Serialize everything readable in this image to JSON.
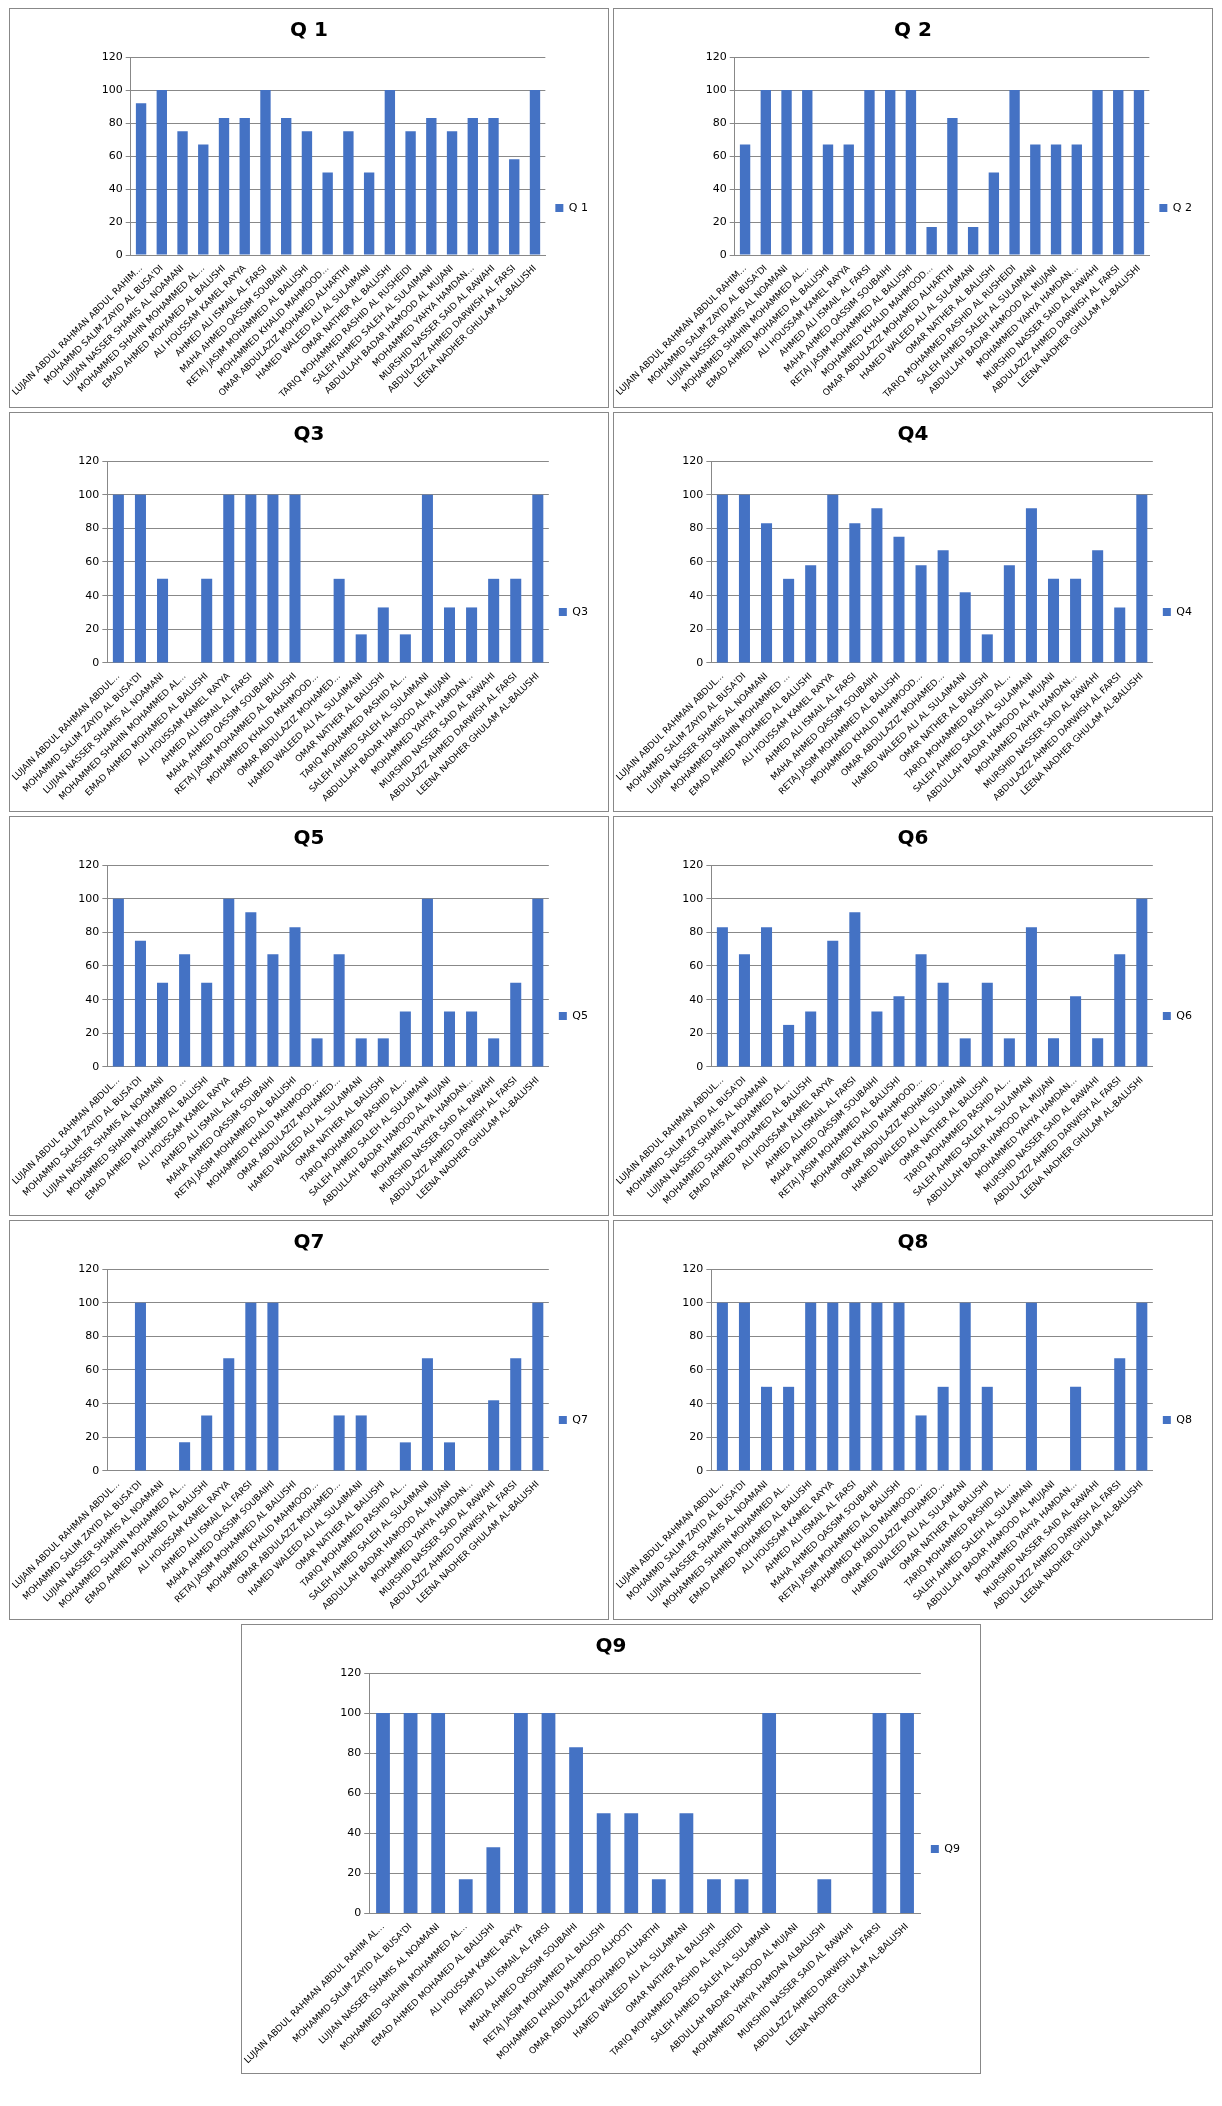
{
  "chart_data": [
    {
      "type": "bar",
      "title": "Q 1",
      "categories": [
        "LUJAIN ABDUL RAHMAN ABDUL RAHIM...",
        "MOHAMMD SALIM ZAYID AL BUSA'DI",
        "LUJIAN NASSER SHAMIS AL NOAMANI",
        "MOHAMMED SHAHIN MOHAMMED AL...",
        "EMAD AHMED MOHAMED AL BALUSHI",
        "ALI HOUSSAM KAMEL RAYYA",
        "AHMED ALI ISMAIL AL FARSI",
        "MAHA AHMED QASSIM SOUBAIHI",
        "RETAJ JASIM MOHAMMED AL BALUSHI",
        "MOHAMMED KHALID MAHMOOD...",
        "OMAR ABDULAZIZ MOHAMED ALHARTHI",
        "HAMED WALEED ALI AL SULAIMANI",
        "OMAR NATHER AL BALUSHI",
        "TARIQ MOHAMMED RASHID AL RUSHEIDI",
        "SALEH AHMED SALEH AL SULAIMANI",
        "ABDULLAH BADAR HAMOOD AL MUJANI",
        "MOHAMMED YAHYA HAMDAN...",
        "MURSHID NASSER SAID AL RAWAHI",
        "ABDULAZIZ AHMED DARWISH AL FARSI",
        "LEENA NADHER GHULAM AL-BALUSHI"
      ],
      "series": [
        {
          "name": "Q 1",
          "color": "#4472c4",
          "values": [
            92,
            100,
            75,
            67,
            83,
            83,
            100,
            83,
            75,
            50,
            75,
            50,
            100,
            75,
            83,
            75,
            83,
            83,
            58,
            100
          ]
        }
      ],
      "ylim": [
        0,
        120
      ],
      "yticks": [
        0,
        20,
        40,
        60,
        80,
        100,
        120
      ],
      "grid": "y",
      "legend": "right"
    },
    {
      "type": "bar",
      "title": "Q 2",
      "categories": [
        "LUJAIN ABDUL RAHMAN ABDUL RAHIM...",
        "MOHAMMD SALIM ZAYID AL BUSA'DI",
        "LUJIAN NASSER SHAMIS AL NOAMANI",
        "MOHAMMED SHAHIN MOHAMMED AL...",
        "EMAD AHMED MOHAMED AL BALUSHI",
        "ALI HOUSSAM KAMEL RAYYA",
        "AHMED ALI ISMAIL AL FARSI",
        "MAHA AHMED QASSIM SOUBAIHI",
        "RETAJ JASIM MOHAMMED AL BALUSHI",
        "MOHAMMED KHALID MAHMOOD...",
        "OMAR ABDULAZIZ MOHAMED ALHARTHI",
        "HAMED WALEED ALI AL SULAIMANI",
        "OMAR NATHER AL BALUSHI",
        "TARIQ MOHAMMED RASHID AL RUSHEIDI",
        "SALEH AHMED SALEH AL SULAIMANI",
        "ABDULLAH BADAR HAMOOD AL MUJANI",
        "MOHAMMED YAHYA HAMDAN...",
        "MURSHID NASSER SAID AL RAWAHI",
        "ABDULAZIZ AHMED DARWISH AL FARSI",
        "LEENA NADHER GHULAM AL-BALUSHI"
      ],
      "series": [
        {
          "name": "Q 2",
          "color": "#4472c4",
          "values": [
            67,
            100,
            100,
            100,
            67,
            67,
            100,
            100,
            100,
            17,
            83,
            17,
            50,
            100,
            67,
            67,
            67,
            100,
            100,
            100
          ]
        }
      ],
      "ylim": [
        0,
        120
      ],
      "yticks": [
        0,
        20,
        40,
        60,
        80,
        100,
        120
      ],
      "grid": "y",
      "legend": "right"
    },
    {
      "type": "bar",
      "title": "Q3",
      "categories": [
        "LUJAIN ABDUL RAHMAN ABDUL...",
        "MOHAMMD SALIM ZAYID AL BUSA'DI",
        "LUJIAN NASSER SHAMIS AL NOAMANI",
        "MOHAMMED SHAHIN MOHAMMED AL...",
        "EMAD AHMED MOHAMED AL BALUSHI",
        "ALI HOUSSAM KAMEL RAYYA",
        "AHMED ALI ISMAIL AL FARSI",
        "MAHA AHMED QASSIM SOUBAIHI",
        "RETAJ JASIM MOHAMMED AL BALUSHI",
        "MOHAMMED KHALID MAHMOOD...",
        "OMAR ABDULAZIZ MOHAMED...",
        "HAMED WALEED ALI AL SULAIMANI",
        "OMAR NATHER AL BALUSHI",
        "TARIQ MOHAMMED RASHID AL...",
        "SALEH AHMED SALEH AL SULAIMANI",
        "ABDULLAH BADAR HAMOOD AL MUJANI",
        "MOHAMMED YAHYA HAMDAN...",
        "MURSHID NASSER SAID AL RAWAHI",
        "ABDULAZIZ AHMED DARWISH AL FARSI",
        "LEENA NADHER GHULAM AL-BALUSHI"
      ],
      "series": [
        {
          "name": "Q3",
          "color": "#4472c4",
          "values": [
            100,
            100,
            50,
            0,
            50,
            100,
            100,
            100,
            100,
            0,
            50,
            17,
            33,
            17,
            100,
            33,
            33,
            50,
            50,
            100
          ]
        }
      ],
      "ylim": [
        0,
        120
      ],
      "yticks": [
        0,
        20,
        40,
        60,
        80,
        100,
        120
      ],
      "grid": "y",
      "legend": "right"
    },
    {
      "type": "bar",
      "title": "Q4",
      "categories": [
        "LUJAIN ABDUL RAHMAN ABDUL...",
        "MOHAMMD SALIM ZAYID AL BUSA'DI",
        "LUJIAN NASSER SHAMIS AL NOAMANI",
        "MOHAMMED SHAHIN MOHAMMED ...",
        "EMAD AHMED MOHAMED AL BALUSHI",
        "ALI HOUSSAM KAMEL RAYYA",
        "AHMED ALI ISMAIL AL FARSI",
        "MAHA AHMED QASSIM SOUBAIHI",
        "RETAJ JASIM MOHAMMED AL BALUSHI",
        "MOHAMMED KHALID MAHMOOD...",
        "OMAR ABDULAZIZ MOHAMED...",
        "HAMED WALEED ALI AL SULAIMANI",
        "OMAR NATHER AL BALUSHI",
        "TARIQ MOHAMMED RASHID AL...",
        "SALEH AHMED SALEH AL SULAIMANI",
        "ABDULLAH BADAR HAMOOD AL MUJANI",
        "MOHAMMED YAHYA HAMDAN...",
        "MURSHID NASSER SAID AL RAWAHI",
        "ABDULAZIZ AHMED DARWISH AL FARSI",
        "LEENA NADHER GHULAM AL-BALUSHI"
      ],
      "series": [
        {
          "name": "Q4",
          "color": "#4472c4",
          "values": [
            100,
            100,
            83,
            50,
            58,
            100,
            83,
            92,
            75,
            58,
            67,
            42,
            17,
            58,
            92,
            50,
            50,
            67,
            33,
            100
          ]
        }
      ],
      "ylim": [
        0,
        120
      ],
      "yticks": [
        0,
        20,
        40,
        60,
        80,
        100,
        120
      ],
      "grid": "y",
      "legend": "right"
    },
    {
      "type": "bar",
      "title": "Q5",
      "categories": [
        "LUJAIN ABDUL RAHMAN ABDUL...",
        "MOHAMMD SALIM ZAYID AL BUSA'DI",
        "LUJIAN NASSER SHAMIS AL NOAMANI",
        "MOHAMMED SHAHIN MOHAMMED ...",
        "EMAD AHMED MOHAMED AL BALUSHI",
        "ALI HOUSSAM KAMEL RAYYA",
        "AHMED ALI ISMAIL AL FARSI",
        "MAHA AHMED QASSIM SOUBAIHI",
        "RETAJ JASIM MOHAMMED AL BALUSHI",
        "MOHAMMED KHALID MAHMOOD...",
        "OMAR ABDULAZIZ MOHAMED...",
        "HAMED WALEED ALI AL SULAIMANI",
        "OMAR NATHER AL BALUSHI",
        "TARIQ MOHAMMED RASHID AL...",
        "SALEH AHMED SALEH AL SULAIMANI",
        "ABDULLAH BADAR HAMOOD AL MUJANI",
        "MOHAMMED YAHYA HAMDAN...",
        "MURSHID NASSER SAID AL RAWAHI",
        "ABDULAZIZ AHMED DARWISH AL FARSI",
        "LEENA NADHER GHULAM AL-BALUSHI"
      ],
      "series": [
        {
          "name": "Q5",
          "color": "#4472c4",
          "values": [
            100,
            75,
            50,
            67,
            50,
            100,
            92,
            67,
            83,
            17,
            67,
            17,
            17,
            33,
            100,
            33,
            33,
            17,
            50,
            100
          ]
        }
      ],
      "ylim": [
        0,
        120
      ],
      "yticks": [
        0,
        20,
        40,
        60,
        80,
        100,
        120
      ],
      "grid": "y",
      "legend": "right"
    },
    {
      "type": "bar",
      "title": "Q6",
      "categories": [
        "LUJAIN ABDUL RAHMAN ABDUL...",
        "MOHAMMD SALIM ZAYID AL BUSA'DI",
        "LUJIAN NASSER SHAMIS AL NOAMANI",
        "MOHAMMED SHAHIN MOHAMMED AL...",
        "EMAD AHMED MOHAMED AL BALUSHI",
        "ALI HOUSSAM KAMEL RAYYA",
        "AHMED ALI ISMAIL AL FARSI",
        "MAHA AHMED QASSIM SOUBAIHI",
        "RETAJ JASIM MOHAMMED AL BALUSHI",
        "MOHAMMED KHALID MAHMOOD...",
        "OMAR ABDULAZIZ MOHAMED...",
        "HAMED WALEED ALI AL SULAIMANI",
        "OMAR NATHER AL BALUSHI",
        "TARIQ MOHAMMED RASHID AL...",
        "SALEH AHMED SALEH AL SULAIMANI",
        "ABDULLAH BADAR HAMOOD AL MUJANI",
        "MOHAMMED YAHYA HAMDAN...",
        "MURSHID NASSER SAID AL RAWAHI",
        "ABDULAZIZ AHMED DARWISH AL FARSI",
        "LEENA NADHER GHULAM AL-BALUSHI"
      ],
      "series": [
        {
          "name": "Q6",
          "color": "#4472c4",
          "values": [
            83,
            67,
            83,
            25,
            33,
            75,
            92,
            33,
            42,
            67,
            50,
            17,
            50,
            17,
            83,
            17,
            42,
            17,
            67,
            100
          ]
        }
      ],
      "ylim": [
        0,
        120
      ],
      "yticks": [
        0,
        20,
        40,
        60,
        80,
        100,
        120
      ],
      "grid": "y",
      "legend": "right"
    },
    {
      "type": "bar",
      "title": "Q7",
      "categories": [
        "LUJAIN ABDUL RAHMAN ABDUL...",
        "MOHAMMD SALIM ZAYID AL BUSA'DI",
        "LUJIAN NASSER SHAMIS AL NOAMANI",
        "MOHAMMED SHAHIN MOHAMMED AL...",
        "EMAD AHMED MOHAMED AL BALUSHI",
        "ALI HOUSSAM KAMEL RAYYA",
        "AHMED ALI ISMAIL AL FARSI",
        "MAHA AHMED QASSIM SOUBAIHI",
        "RETAJ JASIM MOHAMMED AL BALUSHI",
        "MOHAMMED KHALID MAHMOOD...",
        "OMAR ABDULAZIZ MOHAMED...",
        "HAMED WALEED ALI AL SULAIMANI",
        "OMAR NATHER AL BALUSHI",
        "TARIQ MOHAMMED RASHID AL...",
        "SALEH AHMED SALEH AL SULAIMANI",
        "ABDULLAH BADAR HAMOOD AL MUJANI",
        "MOHAMMED YAHYA HAMDAN...",
        "MURSHID NASSER SAID AL RAWAHI",
        "ABDULAZIZ AHMED DARWISH AL FARSI",
        "LEENA NADHER GHULAM AL-BALUSHI"
      ],
      "series": [
        {
          "name": "Q7",
          "color": "#4472c4",
          "values": [
            0,
            100,
            0,
            17,
            33,
            67,
            100,
            100,
            0,
            0,
            33,
            33,
            0,
            17,
            67,
            17,
            0,
            42,
            67,
            100
          ]
        }
      ],
      "ylim": [
        0,
        120
      ],
      "yticks": [
        0,
        20,
        40,
        60,
        80,
        100,
        120
      ],
      "grid": "y",
      "legend": "right"
    },
    {
      "type": "bar",
      "title": "Q8",
      "categories": [
        "LUJAIN ABDUL RAHMAN ABDUL...",
        "MOHAMMD SALIM ZAYID AL BUSA'DI",
        "LUJIAN NASSER SHAMIS AL NOAMANI",
        "MOHAMMED SHAHIN MOHAMMED AL...",
        "EMAD AHMED MOHAMED AL BALUSHI",
        "ALI HOUSSAM KAMEL RAYYA",
        "AHMED ALI ISMAIL AL FARSI",
        "MAHA AHMED QASSIM SOUBAIHI",
        "RETAJ JASIM MOHAMMED AL BALUSHI",
        "MOHAMMED KHALID MAHMOOD...",
        "OMAR ABDULAZIZ MOHAMED...",
        "HAMED WALEED ALI AL SULAIMANI",
        "OMAR NATHER AL BALUSHI",
        "TARIQ MOHAMMED RASHID AL...",
        "SALEH AHMED SALEH AL SULAIMANI",
        "ABDULLAH BADAR HAMOOD AL MUJANI",
        "MOHAMMED YAHYA HAMDAN...",
        "MURSHID NASSER SAID AL RAWAHI",
        "ABDULAZIZ AHMED DARWISH AL FARSI",
        "LEENA NADHER GHULAM AL-BALUSHI"
      ],
      "series": [
        {
          "name": "Q8",
          "color": "#4472c4",
          "values": [
            100,
            100,
            50,
            50,
            100,
            100,
            100,
            100,
            100,
            33,
            50,
            100,
            50,
            0,
            100,
            0,
            50,
            0,
            67,
            100
          ]
        }
      ],
      "ylim": [
        0,
        120
      ],
      "yticks": [
        0,
        20,
        40,
        60,
        80,
        100,
        120
      ],
      "grid": "y",
      "legend": "right"
    },
    {
      "type": "bar",
      "title": "Q9",
      "categories": [
        "LUJAIN ABDUL RAHMAN ABDUL RAHIM AL...",
        "MOHAMMD SALIM ZAYID AL BUSA'DI",
        "LUJIAN NASSER SHAMIS AL NOAMANI",
        "MOHAMMED SHAHIN MOHAMMED AL...",
        "EMAD AHMED MOHAMED AL BALUSHI",
        "ALI HOUSSAM KAMEL RAYYA",
        "AHMED ALI ISMAIL AL FARSI",
        "MAHA AHMED QASSIM SOUBAIHI",
        "RETAJ JASIM MOHAMMED AL BALUSHI",
        "MOHAMMED KHALID MAHMOOD ALHOOTI",
        "OMAR ABDULAZIZ MOHAMED ALHARTHI",
        "HAMED WALEED ALI AL SULAIMANI",
        "OMAR NATHER AL BALUSHI",
        "TARIQ MOHAMMED RASHID AL RUSHEIDI",
        "SALEH AHMED SALEH AL SULAIMANI",
        "ABDULLAH BADAR HAMOOD AL MUJANI",
        "MOHAMMED YAHYA HAMDAN ALBALUSHI",
        "MURSHID NASSER SAID AL RAWAHI",
        "ABDULAZIZ AHMED DARWISH AL FARSI",
        "LEENA NADHER GHULAM AL-BALUSHI"
      ],
      "series": [
        {
          "name": "Q9",
          "color": "#4472c4",
          "values": [
            100,
            100,
            100,
            17,
            33,
            100,
            100,
            83,
            50,
            50,
            17,
            50,
            17,
            17,
            100,
            0,
            17,
            0,
            100,
            100
          ]
        }
      ],
      "ylim": [
        0,
        120
      ],
      "yticks": [
        0,
        20,
        40,
        60,
        80,
        100,
        120
      ],
      "grid": "y",
      "legend": "right"
    }
  ]
}
